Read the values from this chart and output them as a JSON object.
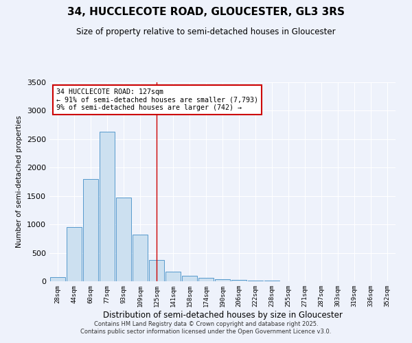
{
  "title": "34, HUCCLECOTE ROAD, GLOUCESTER, GL3 3RS",
  "subtitle": "Size of property relative to semi-detached houses in Gloucester",
  "xlabel": "Distribution of semi-detached houses by size in Gloucester",
  "ylabel": "Number of semi-detached properties",
  "annotation_title": "34 HUCCLECOTE ROAD: 127sqm",
  "annotation_line1": "← 91% of semi-detached houses are smaller (7,793)",
  "annotation_line2": "9% of semi-detached houses are larger (742) →",
  "footer1": "Contains HM Land Registry data © Crown copyright and database right 2025.",
  "footer2": "Contains public sector information licensed under the Open Government Licence v3.0.",
  "bin_labels": [
    "28sqm",
    "44sqm",
    "60sqm",
    "77sqm",
    "93sqm",
    "109sqm",
    "125sqm",
    "141sqm",
    "158sqm",
    "174sqm",
    "190sqm",
    "206sqm",
    "222sqm",
    "238sqm",
    "255sqm",
    "271sqm",
    "287sqm",
    "303sqm",
    "319sqm",
    "336sqm",
    "352sqm"
  ],
  "bin_values": [
    75,
    950,
    1800,
    2625,
    1475,
    825,
    375,
    175,
    100,
    60,
    35,
    20,
    15,
    8,
    5,
    3,
    3,
    2,
    1,
    0,
    0
  ],
  "bar_color": "#cce0f0",
  "bar_edge_color": "#5599cc",
  "highlight_line_color": "#cc0000",
  "highlight_bin_index": 6,
  "annotation_box_color": "#ffffff",
  "annotation_border_color": "#cc0000",
  "background_color": "#eef2fb",
  "grid_color": "#ffffff",
  "ylim": [
    0,
    3500
  ],
  "yticks": [
    0,
    500,
    1000,
    1500,
    2000,
    2500,
    3000,
    3500
  ]
}
